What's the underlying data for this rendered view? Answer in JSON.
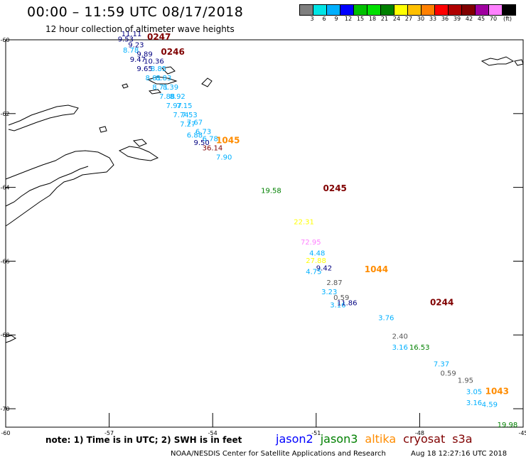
{
  "title": "00:00 – 11:59 UTC 08/17/2018",
  "subtitle": "12 hour collection of altimeter wave heights",
  "colorbar": {
    "colors": [
      "#7f7f7f",
      "#00e5e5",
      "#00b0ff",
      "#0000ff",
      "#00c000",
      "#00e000",
      "#008000",
      "#ffff00",
      "#ffc000",
      "#ff8000",
      "#ff0000",
      "#b00000",
      "#800000",
      "#a000a0",
      "#ff80ff",
      "#000000"
    ],
    "labels": [
      "3",
      "6",
      "9",
      "12",
      "15",
      "18",
      "21",
      "24",
      "27",
      "30",
      "33",
      "36",
      "39",
      "42",
      "45",
      "70",
      "(ft)"
    ]
  },
  "axes": {
    "x_ticks": [
      "-60",
      "-57",
      "-54",
      "-51",
      "-48",
      "-45"
    ],
    "y_ticks": [
      "-60",
      "-62",
      "-64",
      "-66",
      "-68",
      "-70"
    ]
  },
  "passes": [
    {
      "label": "0247",
      "color": "#800000",
      "lon": -55.9,
      "lat": -60.0
    },
    {
      "label": "0246",
      "color": "#800000",
      "lon": -55.5,
      "lat": -60.4
    },
    {
      "label": "1045",
      "color": "#ff8c00",
      "lon": -53.9,
      "lat": -62.8
    },
    {
      "label": "0245",
      "color": "#800000",
      "lon": -50.8,
      "lat": -64.1
    },
    {
      "label": "1044",
      "color": "#ff8c00",
      "lon": -49.6,
      "lat": -66.3
    },
    {
      "label": "0244",
      "color": "#800000",
      "lon": -47.7,
      "lat": -67.2
    },
    {
      "label": "1043",
      "color": "#ff8c00",
      "lon": -46.1,
      "lat": -69.6
    }
  ],
  "observations": [
    {
      "v": "11.11",
      "color": "#000080",
      "lon": -56.65,
      "lat": -59.9
    },
    {
      "v": "9.53",
      "color": "#000080",
      "lon": -56.75,
      "lat": -60.05
    },
    {
      "v": "9.23",
      "color": "#000080",
      "lon": -56.45,
      "lat": -60.2
    },
    {
      "v": "8.78",
      "color": "#00b0ff",
      "lon": -56.6,
      "lat": -60.35
    },
    {
      "v": "9.89",
      "color": "#000080",
      "lon": -56.2,
      "lat": -60.45
    },
    {
      "v": "9.47",
      "color": "#000080",
      "lon": -56.4,
      "lat": -60.6
    },
    {
      "v": "10.36",
      "color": "#000080",
      "lon": -56.0,
      "lat": -60.65
    },
    {
      "v": "9.65",
      "color": "#000080",
      "lon": -56.2,
      "lat": -60.85
    },
    {
      "v": "8.85",
      "color": "#00b0ff",
      "lon": -55.8,
      "lat": -60.85
    },
    {
      "v": "8.81",
      "color": "#00b0ff",
      "lon": -55.95,
      "lat": -61.1
    },
    {
      "v": "8.83",
      "color": "#00b0ff",
      "lon": -55.65,
      "lat": -61.1
    },
    {
      "v": "8.71",
      "color": "#00b0ff",
      "lon": -55.75,
      "lat": -61.35
    },
    {
      "v": "8.39",
      "color": "#00b0ff",
      "lon": -55.45,
      "lat": -61.35
    },
    {
      "v": "7.88",
      "color": "#00b0ff",
      "lon": -55.55,
      "lat": -61.6
    },
    {
      "v": "8.92",
      "color": "#00b0ff",
      "lon": -55.25,
      "lat": -61.6
    },
    {
      "v": "7.97",
      "color": "#00b0ff",
      "lon": -55.35,
      "lat": -61.85
    },
    {
      "v": "7.15",
      "color": "#00b0ff",
      "lon": -55.05,
      "lat": -61.85
    },
    {
      "v": "7.74",
      "color": "#00b0ff",
      "lon": -55.15,
      "lat": -62.1
    },
    {
      "v": "7.53",
      "color": "#00b0ff",
      "lon": -54.9,
      "lat": -62.1
    },
    {
      "v": "7.27",
      "color": "#00b0ff",
      "lon": -54.95,
      "lat": -62.35
    },
    {
      "v": "7.67",
      "color": "#00b0ff",
      "lon": -54.75,
      "lat": -62.3
    },
    {
      "v": "6.88",
      "color": "#00b0ff",
      "lon": -54.75,
      "lat": -62.65
    },
    {
      "v": "6.73",
      "color": "#00b0ff",
      "lon": -54.5,
      "lat": -62.55
    },
    {
      "v": "6.78",
      "color": "#00b0ff",
      "lon": -54.3,
      "lat": -62.75
    },
    {
      "v": "9.50",
      "color": "#000080",
      "lon": -54.55,
      "lat": -62.85
    },
    {
      "v": "36.14",
      "color": "#800000",
      "lon": -54.3,
      "lat": -63.0
    },
    {
      "v": "7.90",
      "color": "#00b0ff",
      "lon": -53.9,
      "lat": -63.25
    },
    {
      "v": "19.58",
      "color": "#008000",
      "lon": -52.6,
      "lat": -64.15
    },
    {
      "v": "22.31",
      "color": "#ffff00",
      "lon": -51.65,
      "lat": -65.0
    },
    {
      "v": "72.95",
      "color": "#ff80ff",
      "lon": -51.45,
      "lat": -65.55
    },
    {
      "v": "4.48",
      "color": "#00b0ff",
      "lon": -51.2,
      "lat": -65.85
    },
    {
      "v": "27.88",
      "color": "#ffff00",
      "lon": -51.3,
      "lat": -66.05
    },
    {
      "v": "9.42",
      "color": "#000080",
      "lon": -51.0,
      "lat": -66.25
    },
    {
      "v": "4.75",
      "color": "#00b0ff",
      "lon": -51.3,
      "lat": -66.35
    },
    {
      "v": "2.87",
      "color": "#555555",
      "lon": -50.7,
      "lat": -66.65
    },
    {
      "v": "3.23",
      "color": "#00b0ff",
      "lon": -50.85,
      "lat": -66.9
    },
    {
      "v": "0.59",
      "color": "#555555",
      "lon": -50.5,
      "lat": -67.05
    },
    {
      "v": "3.16",
      "color": "#00b0ff",
      "lon": -50.6,
      "lat": -67.25
    },
    {
      "v": "11.86",
      "color": "#000080",
      "lon": -50.4,
      "lat": -67.2
    },
    {
      "v": "3.76",
      "color": "#00b0ff",
      "lon": -49.2,
      "lat": -67.6
    },
    {
      "v": "2.40",
      "color": "#555555",
      "lon": -48.8,
      "lat": -68.1
    },
    {
      "v": "3.16",
      "color": "#00b0ff",
      "lon": -48.8,
      "lat": -68.4
    },
    {
      "v": "16.53",
      "color": "#008000",
      "lon": -48.3,
      "lat": -68.4
    },
    {
      "v": "7.37",
      "color": "#00b0ff",
      "lon": -47.6,
      "lat": -68.85
    },
    {
      "v": "0.59",
      "color": "#555555",
      "lon": -47.4,
      "lat": -69.1
    },
    {
      "v": "1.95",
      "color": "#555555",
      "lon": -46.9,
      "lat": -69.3
    },
    {
      "v": "3.05",
      "color": "#00b0ff",
      "lon": -46.65,
      "lat": -69.6
    },
    {
      "v": "3.16",
      "color": "#00b0ff",
      "lon": -46.65,
      "lat": -69.9
    },
    {
      "v": "4.59",
      "color": "#00b0ff",
      "lon": -46.2,
      "lat": -69.95
    },
    {
      "v": "19.98",
      "color": "#008000",
      "lon": -45.75,
      "lat": -70.5
    }
  ],
  "note": "note: 1) Time is in UTC; 2) SWH is in feet",
  "legend": [
    {
      "name": "jason2",
      "color": "#0000ff"
    },
    {
      "name": "jason3",
      "color": "#008000"
    },
    {
      "name": "altika",
      "color": "#ff8c00"
    },
    {
      "name": "cryosat",
      "color": "#800000"
    },
    {
      "name": "s3a",
      "color": "#800000"
    }
  ],
  "credit": "NOAA/NESDIS Center for Satellite Applications and Research",
  "generated": "Aug 18 12:27:16 UTC 2018"
}
